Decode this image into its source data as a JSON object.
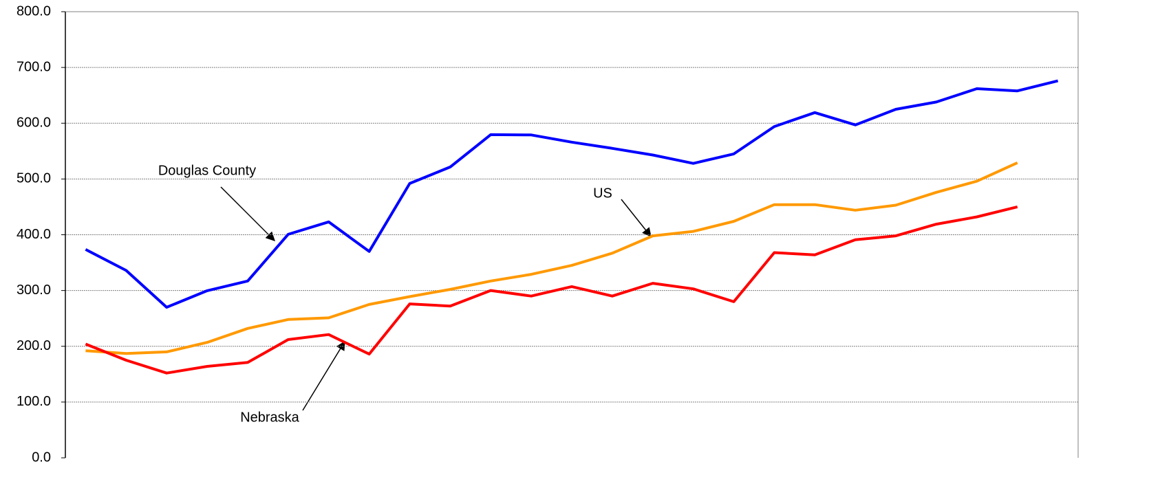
{
  "chart_data": {
    "type": "line",
    "categories": [
      null,
      null,
      null,
      null,
      null,
      null,
      null,
      null,
      null,
      null,
      null,
      null,
      null,
      null,
      null,
      null,
      null,
      null,
      null,
      null,
      null,
      null,
      null,
      null,
      null
    ],
    "series": [
      {
        "name": "Douglas County",
        "color": "#0000ff",
        "values": [
          373.6,
          336,
          270,
          299.6,
          317,
          400.7,
          423,
          370,
          492,
          521.6,
          579.5,
          579,
          566,
          555,
          543,
          528,
          545,
          594,
          619,
          597,
          625,
          638,
          662,
          658,
          676
        ]
      },
      {
        "name": "US",
        "color": "#ff9900",
        "values": [
          192,
          187,
          190,
          207,
          232,
          248,
          251,
          275,
          289,
          302,
          317,
          329,
          345,
          367,
          398,
          406,
          424,
          454,
          454,
          444,
          453,
          476,
          496,
          529,
          null
        ]
      },
      {
        "name": "Nebraska",
        "color": "#ff0000",
        "values": [
          204,
          175,
          152,
          164,
          171,
          212,
          221,
          186,
          276,
          272,
          300,
          290,
          307,
          290,
          313,
          303,
          280,
          368,
          364,
          391,
          398,
          419,
          432,
          450,
          null
        ]
      }
    ],
    "ylim": [
      0,
      800
    ],
    "yticks": [
      {
        "value": 0,
        "label": "0.0"
      },
      {
        "value": 100,
        "label": "100.0"
      },
      {
        "value": 200,
        "label": "200.0"
      },
      {
        "value": 300,
        "label": "300.0"
      },
      {
        "value": 400,
        "label": "400.0"
      },
      {
        "value": 500,
        "label": "500.0"
      },
      {
        "value": 600,
        "label": "600.0"
      },
      {
        "value": 700,
        "label": "700.0"
      },
      {
        "value": 800,
        "label": "800.0"
      }
    ],
    "grid": true,
    "annotations": [
      "Douglas County",
      "US",
      "Nebraska"
    ]
  }
}
